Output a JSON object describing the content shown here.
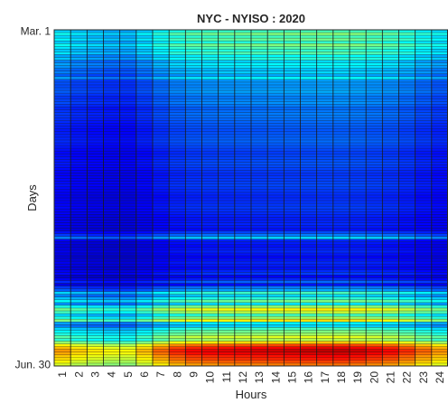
{
  "chart_data": {
    "type": "heatmap",
    "title": "NYC - NYISO : 2020",
    "xlabel": "Hours",
    "ylabel": "Days",
    "x": [
      "1",
      "2",
      "3",
      "4",
      "5",
      "6",
      "7",
      "8",
      "9",
      "10",
      "11",
      "12",
      "13",
      "14",
      "15",
      "16",
      "17",
      "18",
      "19",
      "20",
      "21",
      "22",
      "23",
      "24"
    ],
    "y_tick_labels": [
      "Mar. 1",
      "Jun. 30"
    ],
    "y_range": [
      "Mar. 1",
      "Jun. 30"
    ],
    "n_days": 122,
    "colormap": "jet",
    "grid": true,
    "legend": "none",
    "value_range": [
      0,
      1
    ],
    "hour_profile": [
      0.5,
      0.42,
      0.37,
      0.33,
      0.33,
      0.45,
      0.6,
      0.72,
      0.78,
      0.8,
      0.82,
      0.83,
      0.84,
      0.85,
      0.86,
      0.87,
      0.88,
      0.88,
      0.86,
      0.82,
      0.78,
      0.7,
      0.6,
      0.52
    ],
    "day_profile_keypoints": [
      [
        0,
        0.4
      ],
      [
        1,
        0.46
      ],
      [
        2,
        0.4
      ],
      [
        3,
        0.44
      ],
      [
        4,
        0.38
      ],
      [
        5,
        0.46
      ],
      [
        6,
        0.42
      ],
      [
        7,
        0.38
      ],
      [
        8,
        0.42
      ],
      [
        9,
        0.34
      ],
      [
        10,
        0.38
      ],
      [
        11,
        0.3
      ],
      [
        12,
        0.34
      ],
      [
        13,
        0.32
      ],
      [
        14,
        0.28
      ],
      [
        15,
        0.3
      ],
      [
        16,
        0.26
      ],
      [
        17,
        0.34
      ],
      [
        18,
        0.25
      ],
      [
        20,
        0.24
      ],
      [
        22,
        0.26
      ],
      [
        24,
        0.22
      ],
      [
        26,
        0.24
      ],
      [
        28,
        0.2
      ],
      [
        30,
        0.22
      ],
      [
        33,
        0.2
      ],
      [
        36,
        0.18
      ],
      [
        40,
        0.2
      ],
      [
        44,
        0.16
      ],
      [
        48,
        0.18
      ],
      [
        52,
        0.15
      ],
      [
        56,
        0.17
      ],
      [
        60,
        0.14
      ],
      [
        64,
        0.16
      ],
      [
        68,
        0.13
      ],
      [
        70,
        0.14
      ],
      [
        72,
        0.12
      ],
      [
        74,
        0.22
      ],
      [
        75,
        0.3
      ],
      [
        76,
        0.14
      ],
      [
        78,
        0.12
      ],
      [
        80,
        0.14
      ],
      [
        82,
        0.11
      ],
      [
        84,
        0.14
      ],
      [
        86,
        0.12
      ],
      [
        88,
        0.16
      ],
      [
        89,
        0.1
      ],
      [
        90,
        0.14
      ],
      [
        91,
        0.2
      ],
      [
        92,
        0.12
      ],
      [
        93,
        0.22
      ],
      [
        94,
        0.26
      ],
      [
        95,
        0.4
      ],
      [
        96,
        0.3
      ],
      [
        97,
        0.38
      ],
      [
        98,
        0.45
      ],
      [
        99,
        0.32
      ],
      [
        100,
        0.48
      ],
      [
        101,
        0.58
      ],
      [
        102,
        0.52
      ],
      [
        103,
        0.4
      ],
      [
        104,
        0.48
      ],
      [
        105,
        0.6
      ],
      [
        106,
        0.34
      ],
      [
        107,
        0.3
      ],
      [
        108,
        0.4
      ],
      [
        109,
        0.45
      ],
      [
        110,
        0.48
      ],
      [
        111,
        0.55
      ],
      [
        112,
        0.5
      ],
      [
        113,
        0.62
      ],
      [
        114,
        0.75
      ],
      [
        115,
        0.82
      ],
      [
        116,
        0.86
      ],
      [
        117,
        0.84
      ],
      [
        118,
        0.8
      ],
      [
        119,
        0.78
      ],
      [
        120,
        0.74
      ],
      [
        121,
        0.7
      ]
    ]
  }
}
